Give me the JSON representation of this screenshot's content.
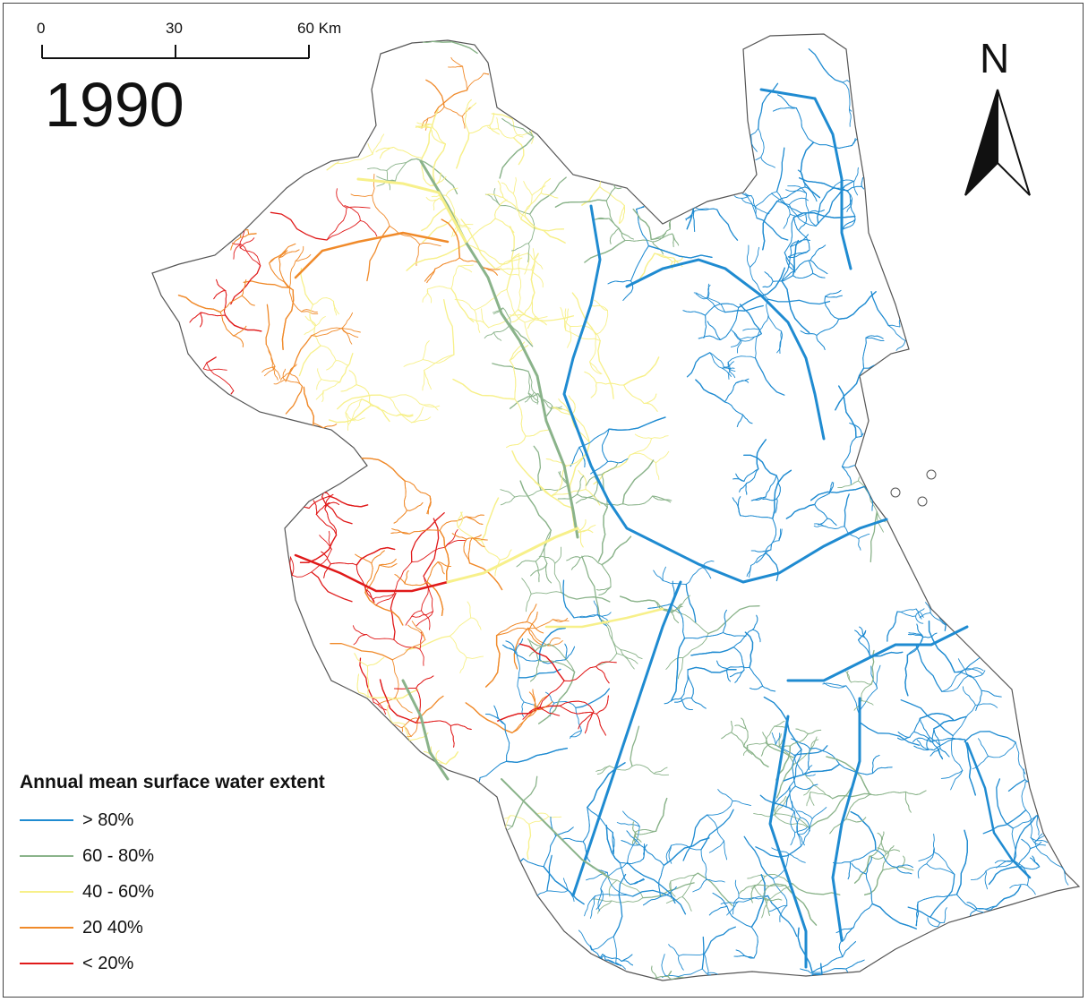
{
  "map": {
    "year": "1990",
    "scale_bar": {
      "ticks": [
        "0",
        "30",
        "60 Km"
      ]
    },
    "north_arrow": {
      "letter": "N"
    },
    "legend": {
      "title": "Annual mean surface water extent",
      "items": [
        {
          "label": "> 80%",
          "color": "#1f8bd1"
        },
        {
          "label": "60 - 80%",
          "color": "#8ab38a"
        },
        {
          "label": "40 - 60%",
          "color": "#f7f08a"
        },
        {
          "label": "20 40%",
          "color": "#f08a2a"
        },
        {
          "label": "< 20%",
          "color": "#e01a1a"
        }
      ]
    },
    "colors": {
      "basin_outline": "#555555",
      "frame": "#444444"
    }
  }
}
